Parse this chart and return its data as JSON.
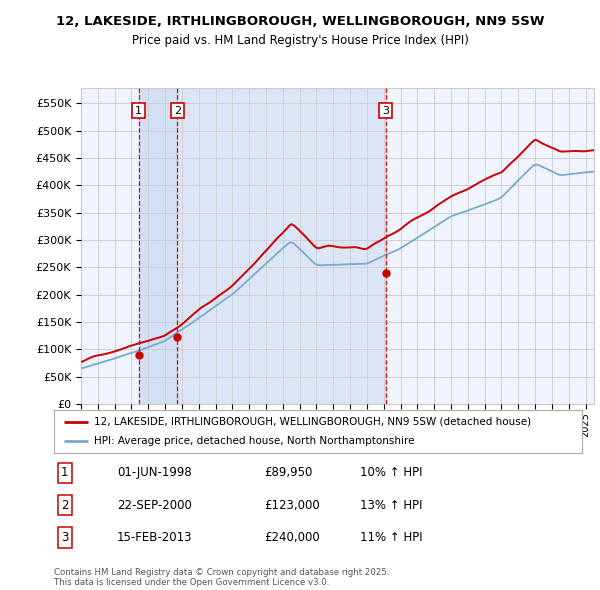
{
  "title1": "12, LAKESIDE, IRTHLINGBOROUGH, WELLINGBOROUGH, NN9 5SW",
  "title2": "Price paid vs. HM Land Registry's House Price Index (HPI)",
  "ylim": [
    0,
    577000
  ],
  "yticks": [
    0,
    50000,
    100000,
    150000,
    200000,
    250000,
    300000,
    350000,
    400000,
    450000,
    500000,
    550000
  ],
  "ytick_labels": [
    "£0",
    "£50K",
    "£100K",
    "£150K",
    "£200K",
    "£250K",
    "£300K",
    "£350K",
    "£400K",
    "£450K",
    "£500K",
    "£550K"
  ],
  "legend_line1": "12, LAKESIDE, IRTHLINGBOROUGH, WELLINGBOROUGH, NN9 5SW (detached house)",
  "legend_line2": "HPI: Average price, detached house, North Northamptonshire",
  "sale_points": [
    {
      "label": "1",
      "date_x": 1998.42,
      "price": 89950
    },
    {
      "label": "2",
      "date_x": 2000.73,
      "price": 123000
    },
    {
      "label": "3",
      "date_x": 2013.12,
      "price": 240000
    }
  ],
  "sale_table": [
    {
      "num": "1",
      "date": "01-JUN-1998",
      "price": "£89,950",
      "hpi": "10% ↑ HPI"
    },
    {
      "num": "2",
      "date": "22-SEP-2000",
      "price": "£123,000",
      "hpi": "13% ↑ HPI"
    },
    {
      "num": "3",
      "date": "15-FEB-2013",
      "price": "£240,000",
      "hpi": "11% ↑ HPI"
    }
  ],
  "footer": "Contains HM Land Registry data © Crown copyright and database right 2025.\nThis data is licensed under the Open Government Licence v3.0.",
  "red_color": "#cc0000",
  "blue_color": "#7aaacc",
  "fill_color": "#ddeeff",
  "vline_color": "#cc0000",
  "grid_color": "#cccccc",
  "background_color": "#ffffff",
  "chart_bg": "#f0f4ff",
  "xlim_left": 1995.0,
  "xlim_right": 2025.5
}
